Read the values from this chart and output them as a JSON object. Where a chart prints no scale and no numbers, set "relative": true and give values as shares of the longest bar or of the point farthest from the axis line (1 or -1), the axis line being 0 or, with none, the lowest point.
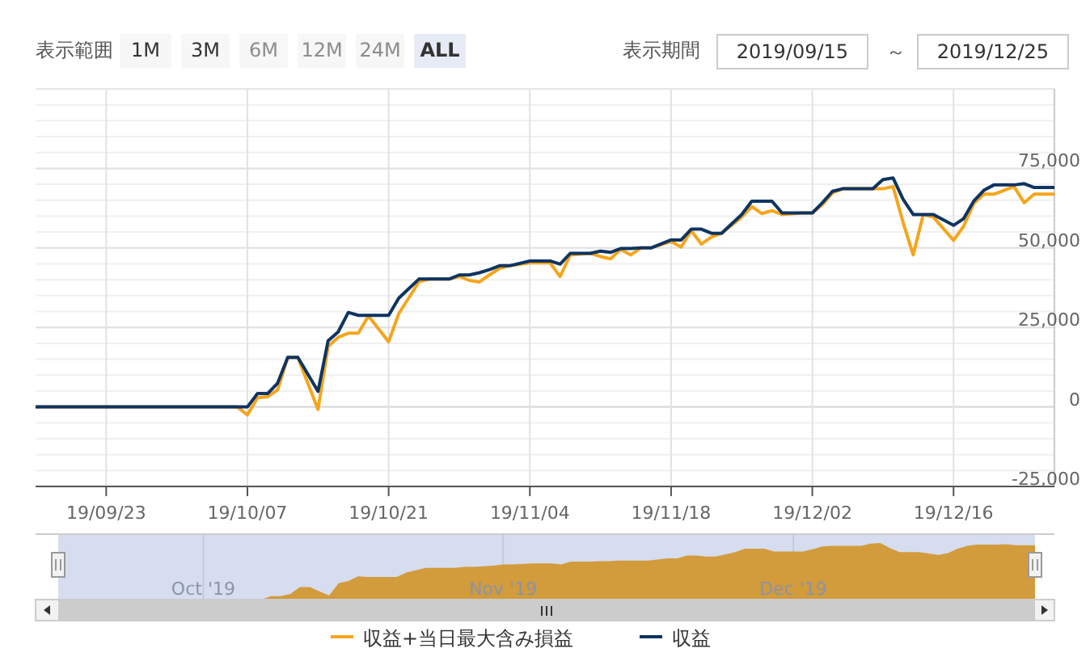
{
  "chart_data": [
    {
      "type": "line",
      "x": [
        "2019-09-16",
        "2019-10-06",
        "2019-10-07",
        "2019-10-08",
        "2019-10-09",
        "2019-10-10",
        "2019-10-11",
        "2019-10-12",
        "2019-10-14",
        "2019-10-15",
        "2019-10-16",
        "2019-10-17",
        "2019-10-18",
        "2019-10-19",
        "2019-10-21",
        "2019-10-22",
        "2019-10-24",
        "2019-10-25",
        "2019-10-27",
        "2019-10-28",
        "2019-10-29",
        "2019-10-30",
        "2019-10-31",
        "2019-11-01",
        "2019-11-02",
        "2019-11-04",
        "2019-11-06",
        "2019-11-07",
        "2019-11-08",
        "2019-11-10",
        "2019-11-11",
        "2019-11-12",
        "2019-11-13",
        "2019-11-14",
        "2019-11-15",
        "2019-11-16",
        "2019-11-18",
        "2019-11-19",
        "2019-11-20",
        "2019-11-21",
        "2019-11-22",
        "2019-11-23",
        "2019-11-25",
        "2019-11-26",
        "2019-11-27",
        "2019-11-28",
        "2019-11-29",
        "2019-12-01",
        "2019-12-02",
        "2019-12-03",
        "2019-12-04",
        "2019-12-05",
        "2019-12-06",
        "2019-12-08",
        "2019-12-09",
        "2019-12-10",
        "2019-12-11",
        "2019-12-12",
        "2019-12-13",
        "2019-12-14",
        "2019-12-16",
        "2019-12-17",
        "2019-12-18",
        "2019-12-19",
        "2019-12-20",
        "2019-12-22",
        "2019-12-23",
        "2019-12-24",
        "2019-12-26"
      ],
      "series": [
        {
          "name": "収益+当日最大含み損益",
          "color": "#f5a51c",
          "values": [
            0,
            0,
            -2500,
            2900,
            3200,
            5400,
            15600,
            15600,
            -800,
            19000,
            21900,
            23200,
            23200,
            28600,
            20500,
            29300,
            39300,
            40200,
            40200,
            41000,
            39800,
            39300,
            41500,
            43600,
            44400,
            45300,
            45300,
            41000,
            47800,
            48300,
            47300,
            46600,
            49500,
            47800,
            50000,
            50000,
            52000,
            50300,
            55400,
            51200,
            53400,
            54600,
            59700,
            63000,
            60800,
            61700,
            60500,
            61000,
            61000,
            63600,
            67300,
            68600,
            68600,
            68600,
            68600,
            69300,
            58000,
            47800,
            60500,
            59700,
            52400,
            56800,
            63900,
            66900,
            66900,
            69300,
            64200,
            66900,
            66900
          ]
        },
        {
          "name": "収益",
          "color": "#0e3461",
          "values": [
            0,
            0,
            0,
            4200,
            4200,
            7500,
            15600,
            15600,
            4900,
            20800,
            23600,
            29700,
            28800,
            28800,
            28800,
            34200,
            40200,
            40200,
            40200,
            41500,
            41500,
            42200,
            43200,
            44400,
            44400,
            45900,
            45900,
            44900,
            48300,
            48300,
            49000,
            48600,
            49800,
            49800,
            50000,
            50000,
            52500,
            52500,
            55900,
            55900,
            54600,
            54600,
            60500,
            64700,
            64700,
            64700,
            61000,
            61000,
            61000,
            64200,
            67800,
            68600,
            68600,
            68600,
            71500,
            72000,
            65300,
            60500,
            60500,
            60500,
            57100,
            59200,
            64700,
            68100,
            69800,
            69800,
            70200,
            69000,
            69000
          ]
        }
      ],
      "xlim": [
        "2019-09-16",
        "2019-12-26"
      ],
      "xticks": [
        {
          "value": "2019-09-23",
          "label": "19/09/23"
        },
        {
          "value": "2019-10-07",
          "label": "19/10/07"
        },
        {
          "value": "2019-10-21",
          "label": "19/10/21"
        },
        {
          "value": "2019-11-04",
          "label": "19/11/04"
        },
        {
          "value": "2019-11-18",
          "label": "19/11/18"
        },
        {
          "value": "2019-12-02",
          "label": "19/12/02"
        },
        {
          "value": "2019-12-16",
          "label": "19/12/16"
        }
      ],
      "ylim": [
        -25000,
        100000
      ],
      "yticks": [
        {
          "value": -25000,
          "label": "-25,000"
        },
        0,
        {
          "value": 25000,
          "label": "25,000"
        },
        {
          "value": 50000,
          "label": "50,000"
        },
        {
          "value": 75000,
          "label": "75,000"
        }
      ],
      "grid": true,
      "legend": "bottom",
      "annotations": [
        "表示範囲",
        "1M",
        "3M",
        "6M",
        "12M",
        "24M",
        "ALL",
        "表示期間",
        "2019/09/15",
        "～",
        "2019/12/25"
      ]
    },
    {
      "type": "area",
      "relative": true,
      "grid": "x",
      "color": "#d29b3c",
      "tick_labels": "x",
      "x": [
        "2019-09-16",
        "2019-10-06",
        "2019-10-07",
        "2019-10-08",
        "2019-10-09",
        "2019-10-10",
        "2019-10-11",
        "2019-10-12",
        "2019-10-14",
        "2019-10-15",
        "2019-10-16",
        "2019-10-17",
        "2019-10-18",
        "2019-10-19",
        "2019-10-21",
        "2019-10-22",
        "2019-10-24",
        "2019-10-25",
        "2019-10-27",
        "2019-10-28",
        "2019-10-29",
        "2019-10-30",
        "2019-10-31",
        "2019-11-01",
        "2019-11-02",
        "2019-11-04",
        "2019-11-06",
        "2019-11-07",
        "2019-11-08",
        "2019-11-10",
        "2019-11-11",
        "2019-11-12",
        "2019-11-13",
        "2019-11-14",
        "2019-11-15",
        "2019-11-16",
        "2019-11-18",
        "2019-11-19",
        "2019-11-20",
        "2019-11-21",
        "2019-11-22",
        "2019-11-23",
        "2019-11-25",
        "2019-11-26",
        "2019-11-27",
        "2019-11-28",
        "2019-11-29",
        "2019-12-01",
        "2019-12-02",
        "2019-12-03",
        "2019-12-04",
        "2019-12-05",
        "2019-12-06",
        "2019-12-08",
        "2019-12-09",
        "2019-12-10",
        "2019-12-11",
        "2019-12-12",
        "2019-12-13",
        "2019-12-14",
        "2019-12-16",
        "2019-12-17",
        "2019-12-18",
        "2019-12-19",
        "2019-12-20",
        "2019-12-22",
        "2019-12-23",
        "2019-12-24",
        "2019-12-26"
      ],
      "values": [
        0,
        0,
        0,
        0.06,
        0.06,
        0.1,
        0.22,
        0.22,
        0.07,
        0.29,
        0.33,
        0.41,
        0.4,
        0.4,
        0.4,
        0.48,
        0.56,
        0.56,
        0.56,
        0.58,
        0.58,
        0.59,
        0.6,
        0.62,
        0.62,
        0.64,
        0.64,
        0.62,
        0.67,
        0.67,
        0.68,
        0.68,
        0.69,
        0.69,
        0.69,
        0.69,
        0.73,
        0.73,
        0.78,
        0.78,
        0.76,
        0.76,
        0.84,
        0.9,
        0.9,
        0.9,
        0.85,
        0.85,
        0.85,
        0.89,
        0.94,
        0.95,
        0.95,
        0.95,
        0.99,
        1,
        0.91,
        0.84,
        0.84,
        0.84,
        0.79,
        0.82,
        0.9,
        0.95,
        0.97,
        0.97,
        0.98,
        0.96,
        0.96
      ],
      "xlim": [
        "2019-09-16",
        "2019-12-26"
      ],
      "xticks": [
        {
          "value": "2019-10-01",
          "label": "Oct '19"
        },
        {
          "value": "2019-11-01",
          "label": "Nov '19"
        },
        {
          "value": "2019-12-01",
          "label": "Dec '19"
        }
      ]
    }
  ]
}
